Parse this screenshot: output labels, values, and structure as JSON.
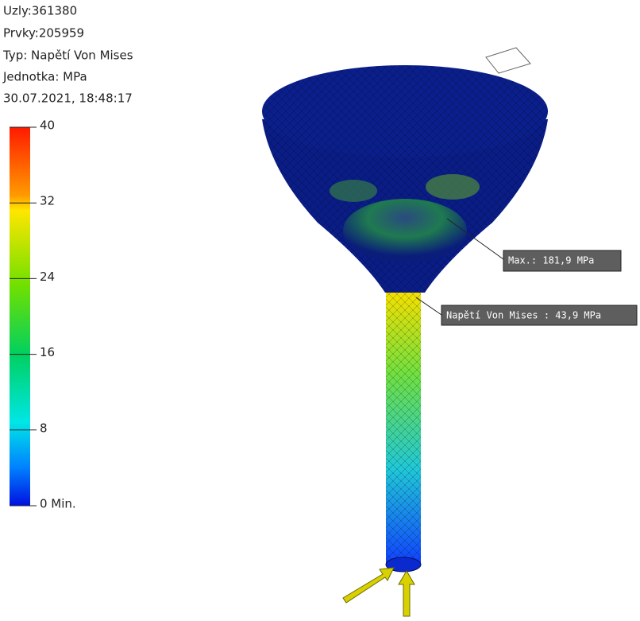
{
  "info": {
    "lines": [
      "Uzly:361380",
      "Prvky:205959",
      "Typ: Napětí Von Mises",
      "Jednotka: MPa",
      "30.07.2021, 18:48:17"
    ]
  },
  "legend": {
    "labels": [
      "40",
      "32",
      "24",
      "16",
      "8",
      "0 Min."
    ]
  },
  "callouts": [
    {
      "text": "Max.: 181,9 MPa"
    },
    {
      "text": "Napětí Von Mises : 43,9 MPa"
    }
  ]
}
